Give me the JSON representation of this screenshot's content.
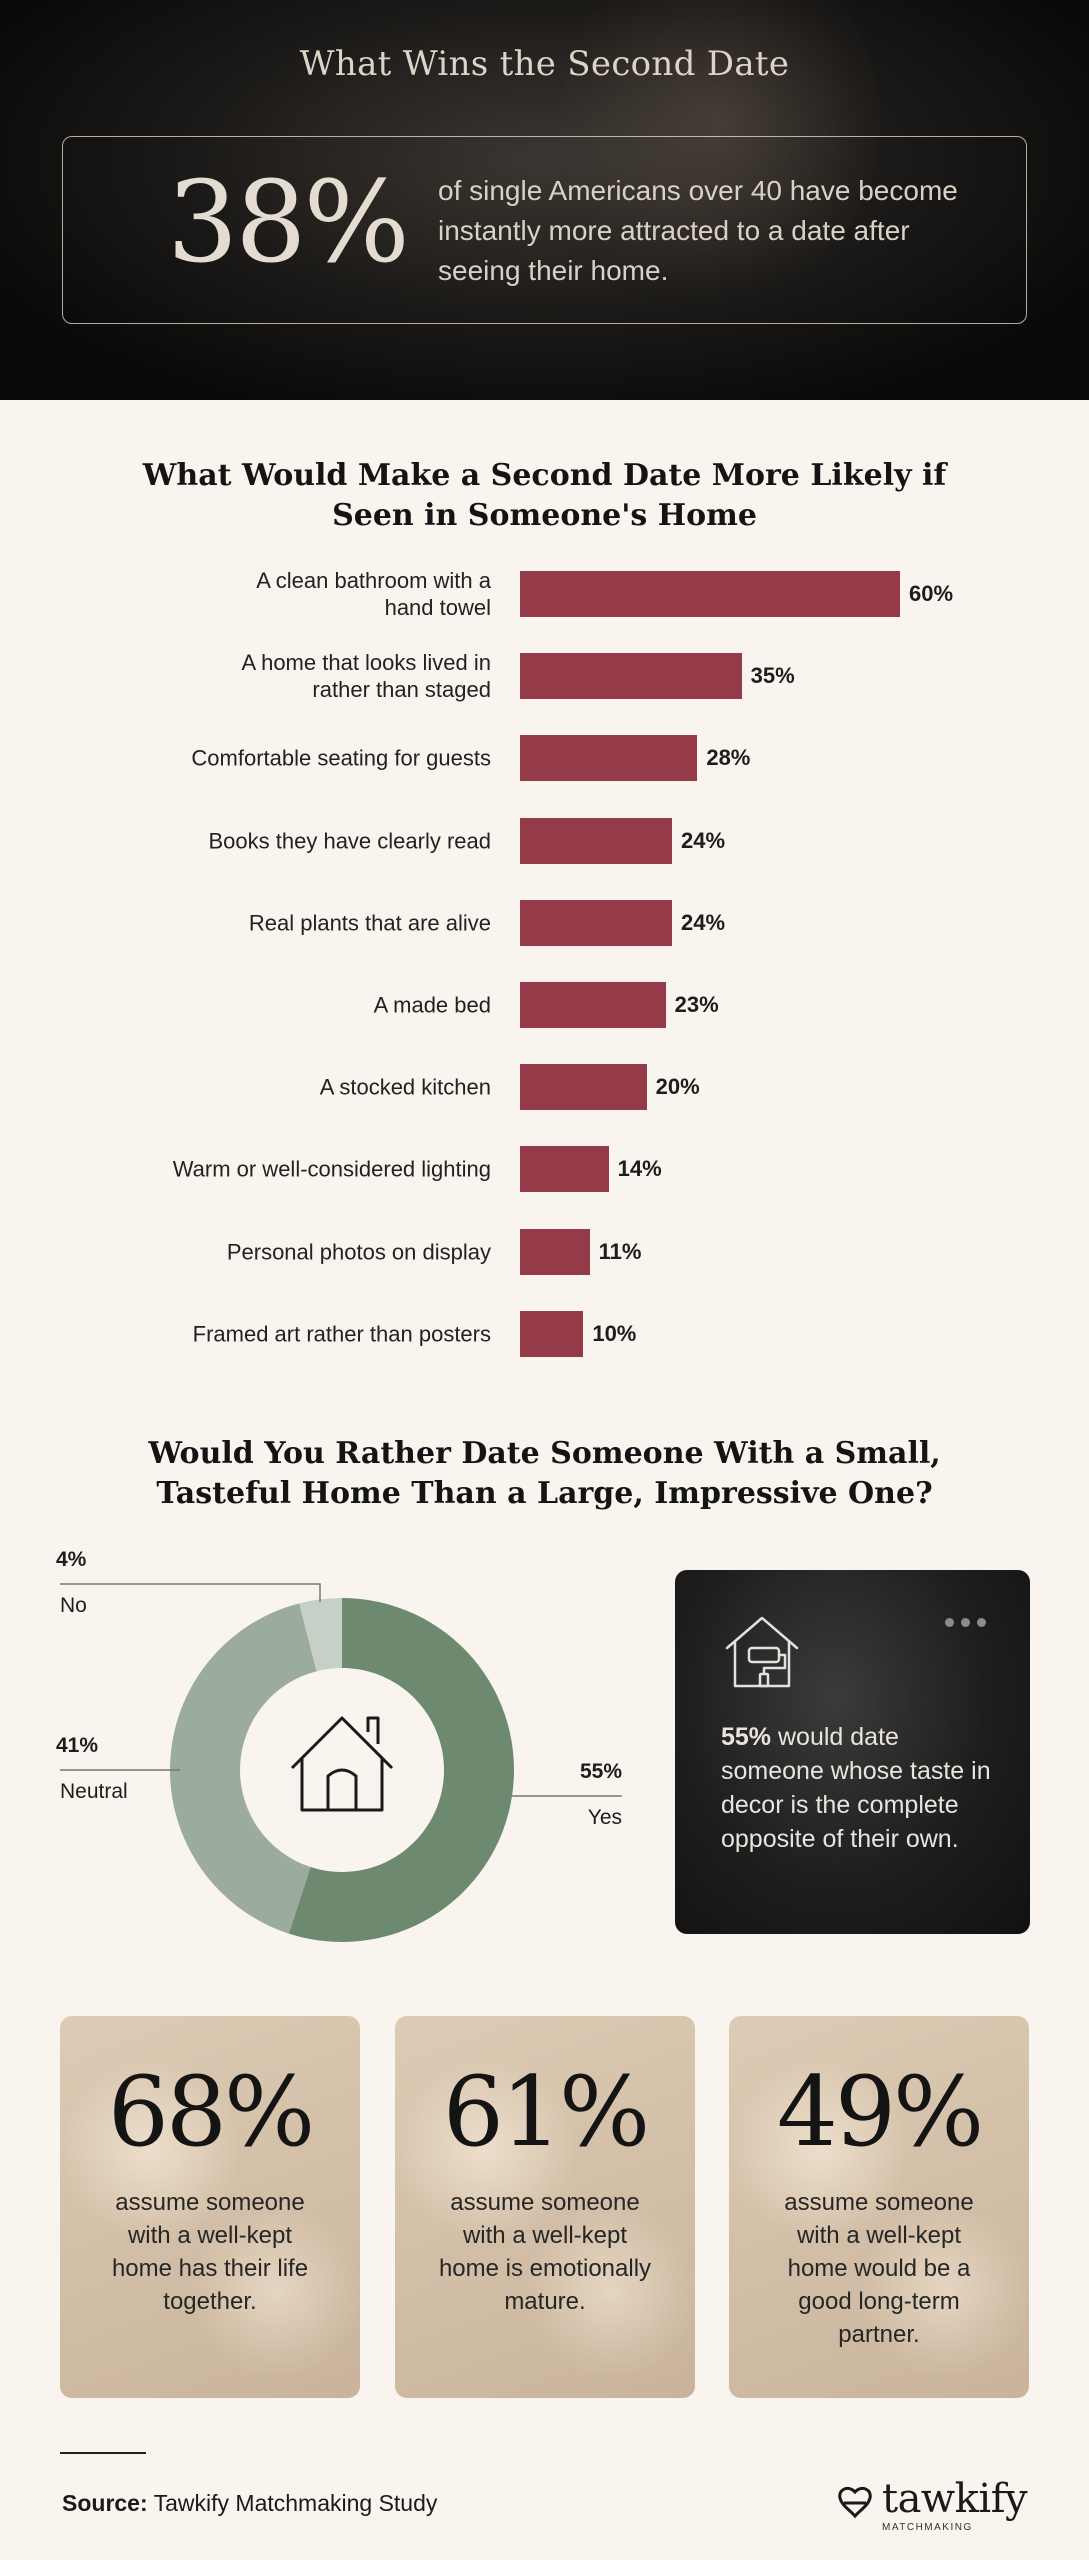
{
  "hero": {
    "title": "What Wins the Second Date",
    "stat": "38%",
    "text": "of single Americans over 40 have become instantly more attracted to a date after seeing their home."
  },
  "section1": {
    "title_line1": "What Would Make a Second Date More Likely if",
    "title_line2": "Seen in Someone's Home"
  },
  "chart_data": [
    {
      "type": "bar",
      "orientation": "horizontal",
      "title": "What Would Make a Second Date More Likely if Seen in Someone's Home",
      "categories": [
        "A clean bathroom with a hand towel",
        "A home that looks lived in rather than staged",
        "Comfortable seating for guests",
        "Books they have clearly read",
        "Real plants that are alive",
        "A made bed",
        "A stocked kitchen",
        "Warm or well-considered lighting",
        "Personal photos on display",
        "Framed art rather than posters"
      ],
      "label_lines": [
        [
          "A clean bathroom with a",
          "hand towel"
        ],
        [
          "A home that looks lived in",
          "rather than staged"
        ],
        [
          "Comfortable seating for guests"
        ],
        [
          "Books they have clearly read"
        ],
        [
          "Real plants that are alive"
        ],
        [
          "A made bed"
        ],
        [
          "A stocked kitchen"
        ],
        [
          "Warm or well-considered lighting"
        ],
        [
          "Personal photos on display"
        ],
        [
          "Framed art rather than posters"
        ]
      ],
      "values": [
        60,
        35,
        28,
        24,
        24,
        23,
        20,
        14,
        11,
        10
      ],
      "value_labels": [
        "60%",
        "35%",
        "28%",
        "24%",
        "24%",
        "23%",
        "20%",
        "14%",
        "11%",
        "10%"
      ],
      "bar_color": "#943a49",
      "xlim": [
        0,
        60
      ],
      "grid": false
    },
    {
      "type": "pie",
      "variant": "donut",
      "title": "Would You Rather Date Someone With a Small, Tasteful Home Than a Large, Impressive One?",
      "categories": [
        "Yes",
        "Neutral",
        "No"
      ],
      "values": [
        55,
        41,
        4
      ],
      "value_labels": [
        "55%",
        "41%",
        "4%"
      ],
      "colors": [
        "#6d8a70",
        "#9bab9c",
        "#c7d0c6"
      ],
      "center_icon": "house-icon"
    }
  ],
  "section2": {
    "title_line1": "Would You Rather Date Someone With a Small,",
    "title_line2": "Tasteful Home Than a Large, Impressive One?"
  },
  "dark_card": {
    "icon": "house-paint-roller-icon",
    "stat": "55%",
    "text": " would date someone whose taste in decor is the complete opposite of their own."
  },
  "stat_cards": [
    {
      "stat": "68%",
      "text": "assume someone with a well-kept home has their life together."
    },
    {
      "stat": "61%",
      "text": "assume someone with a well-kept home is emotionally mature."
    },
    {
      "stat": "49%",
      "text": "assume someone with a well-kept home would be a good long-term partner."
    }
  ],
  "footer": {
    "source_label": "Source:",
    "source_text": " Tawkify Matchmaking Study",
    "brand_name": "tawkify",
    "brand_sub": "MATCHMAKING"
  },
  "colors": {
    "bar": "#943a49",
    "donut_yes": "#6d8a70",
    "donut_neutral": "#9bab9c",
    "donut_no": "#c7d0c6",
    "background": "#f9f4ee"
  }
}
